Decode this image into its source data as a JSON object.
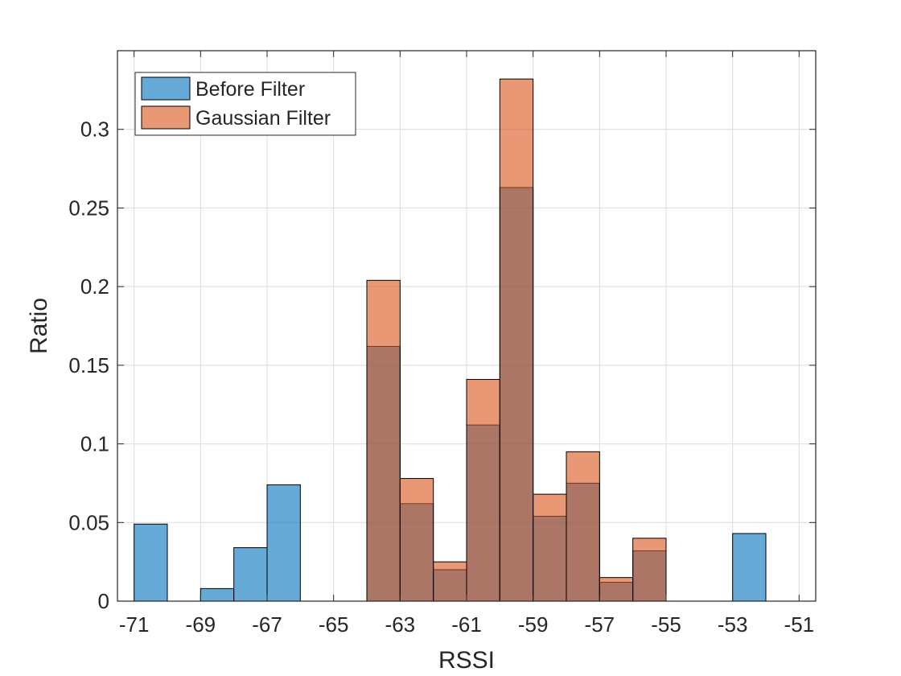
{
  "chart_data": {
    "type": "bar",
    "title": "",
    "xlabel": "RSSI",
    "ylabel": "Ratio",
    "xlim": [
      -71.5,
      -50.5
    ],
    "ylim": [
      0,
      0.35
    ],
    "grid": true,
    "legend_position": "top-left",
    "bin_width": 1,
    "xticks": [
      -71,
      -69,
      -67,
      -65,
      -63,
      -61,
      -59,
      -57,
      -55,
      -53,
      -51
    ],
    "yticks": [
      0,
      0.05,
      0.1,
      0.15,
      0.2,
      0.25,
      0.3
    ],
    "xtick_labels": [
      "-71",
      "-69",
      "-67",
      "-65",
      "-63",
      "-61",
      "-59",
      "-57",
      "-55",
      "-53",
      "-51"
    ],
    "ytick_labels": [
      "0",
      "0.05",
      "0.1",
      "0.15",
      "0.2",
      "0.25",
      "0.3"
    ],
    "series": [
      {
        "name": "Before Filter",
        "color": "#0072BD",
        "bins": [
          {
            "start": -71,
            "value": 0.049
          },
          {
            "start": -69,
            "value": 0.008
          },
          {
            "start": -68,
            "value": 0.034
          },
          {
            "start": -67,
            "value": 0.074
          },
          {
            "start": -64,
            "value": 0.162
          },
          {
            "start": -63,
            "value": 0.062
          },
          {
            "start": -62,
            "value": 0.02
          },
          {
            "start": -61,
            "value": 0.112
          },
          {
            "start": -60,
            "value": 0.263
          },
          {
            "start": -59,
            "value": 0.054
          },
          {
            "start": -58,
            "value": 0.075
          },
          {
            "start": -57,
            "value": 0.012
          },
          {
            "start": -56,
            "value": 0.032
          },
          {
            "start": -53,
            "value": 0.043
          }
        ]
      },
      {
        "name": "Gaussian Filter",
        "color": "#D95319",
        "bins": [
          {
            "start": -64,
            "value": 0.204
          },
          {
            "start": -63,
            "value": 0.078
          },
          {
            "start": -62,
            "value": 0.025
          },
          {
            "start": -61,
            "value": 0.141
          },
          {
            "start": -60,
            "value": 0.332
          },
          {
            "start": -59,
            "value": 0.068
          },
          {
            "start": -58,
            "value": 0.095
          },
          {
            "start": -57,
            "value": 0.015
          },
          {
            "start": -56,
            "value": 0.04
          }
        ]
      }
    ]
  }
}
